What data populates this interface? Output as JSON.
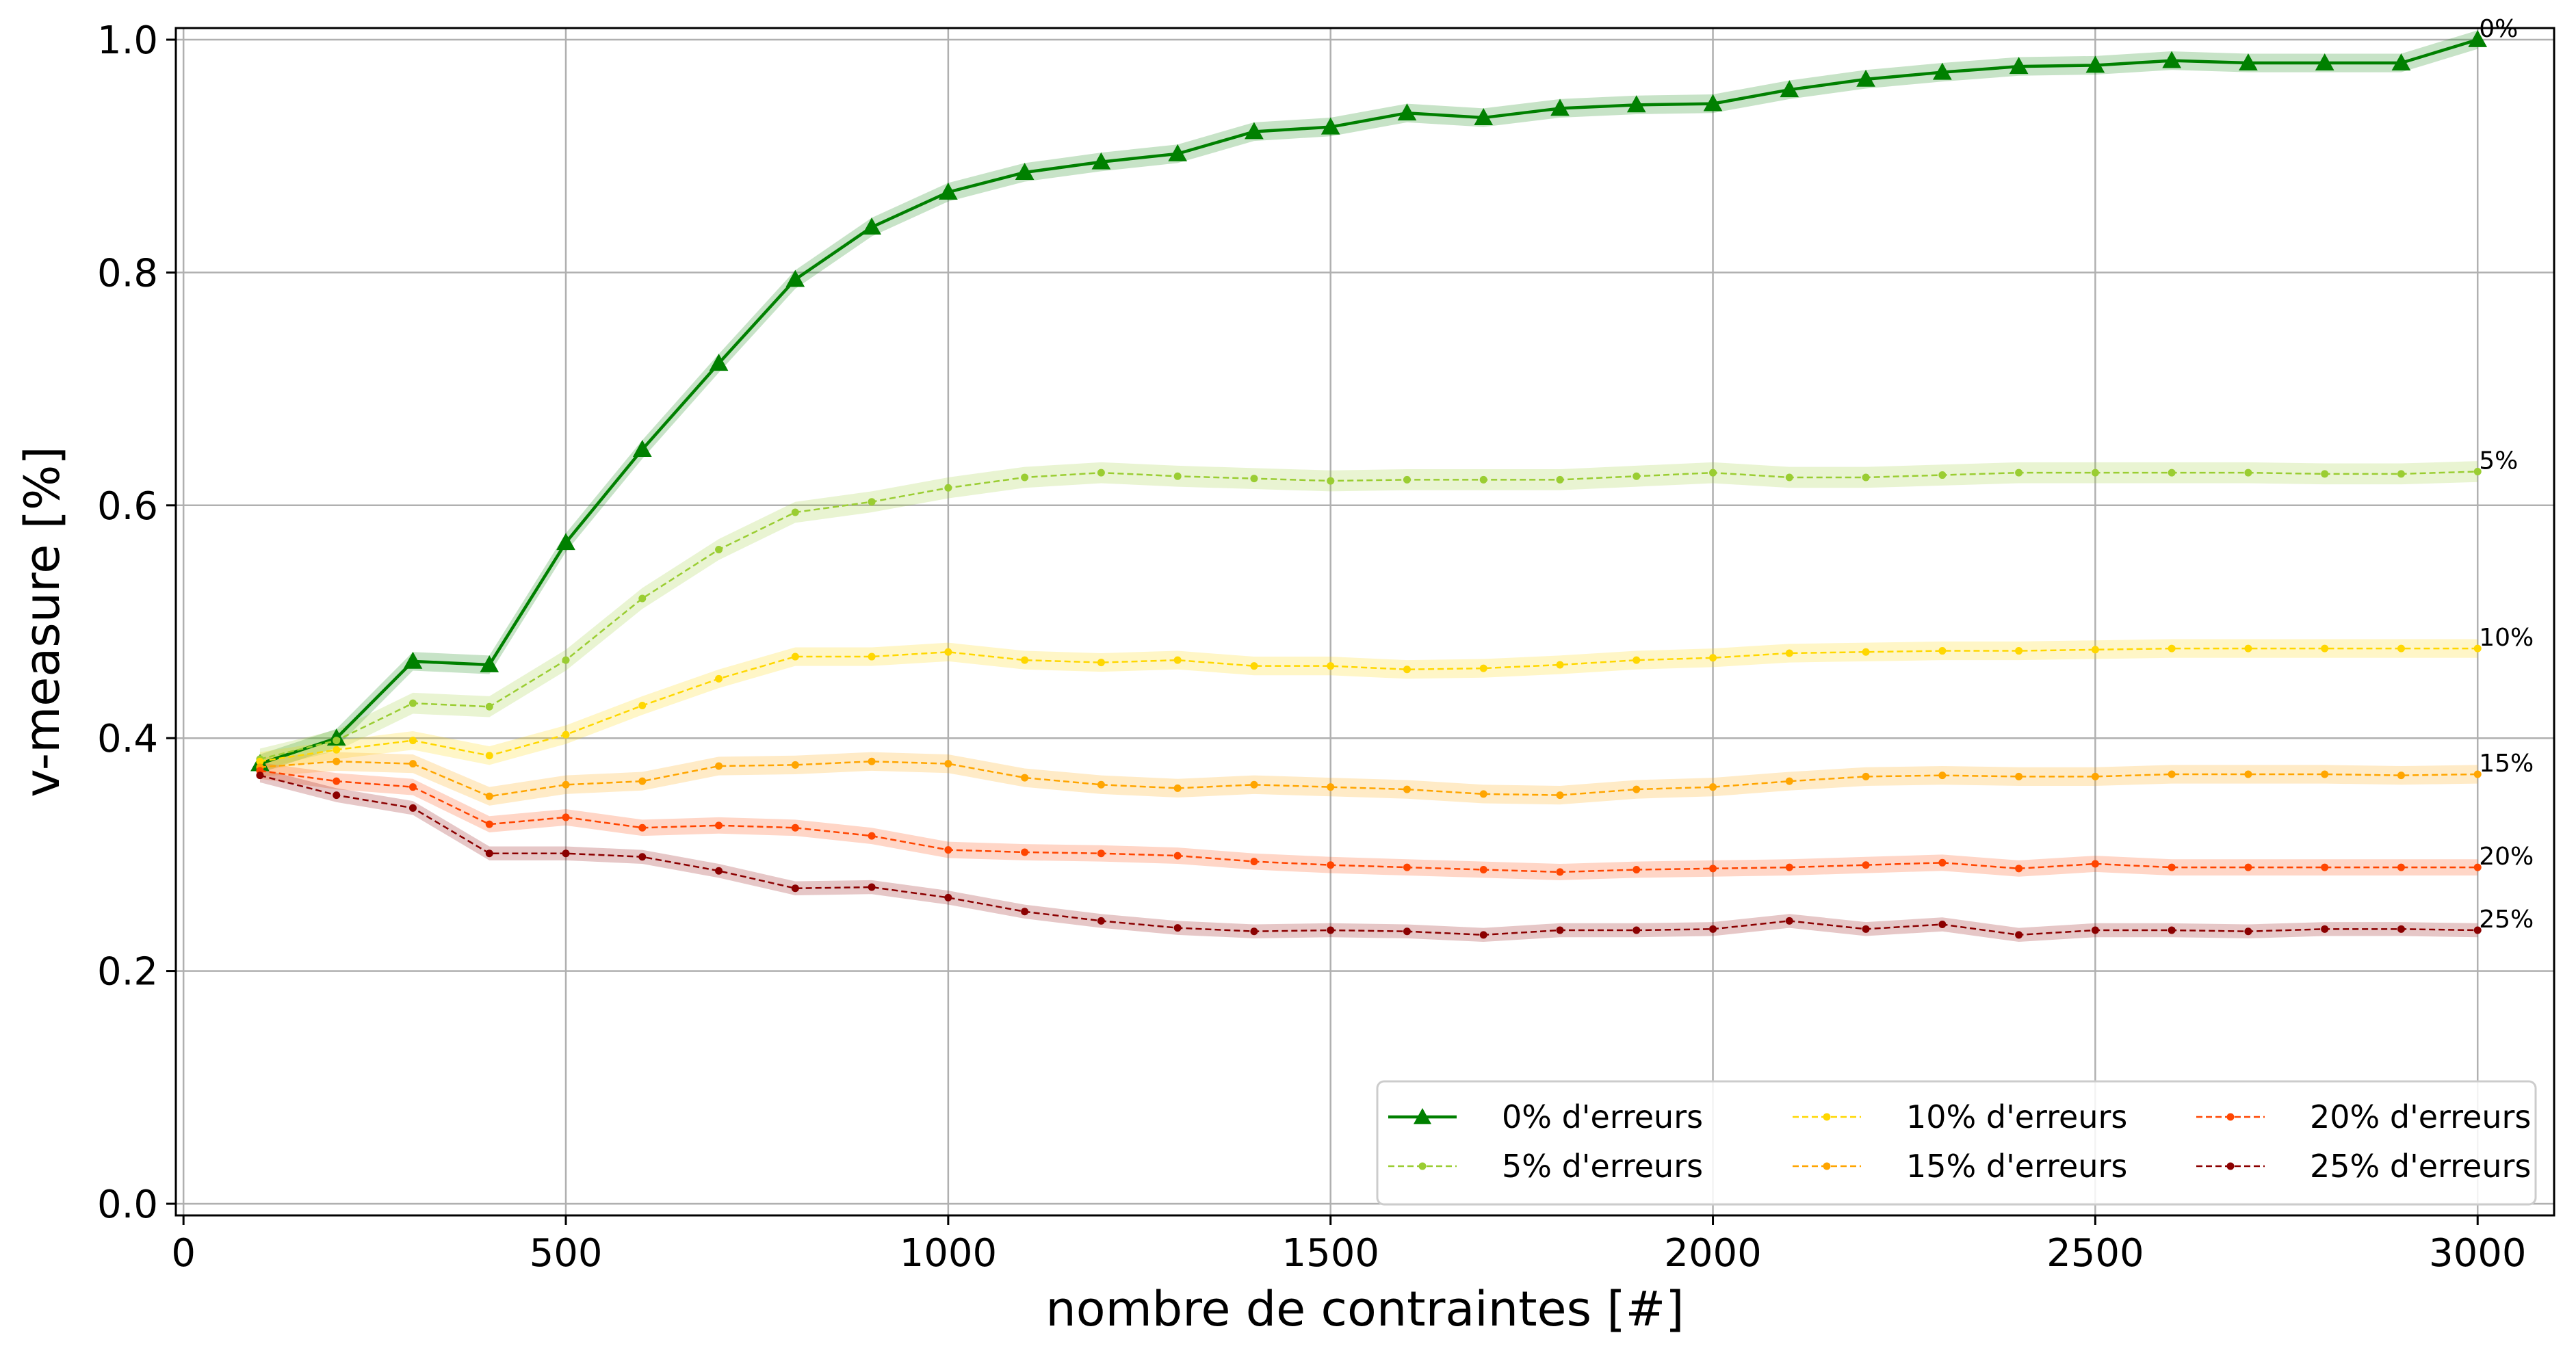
{
  "chart_data": {
    "type": "line",
    "xlabel": "nombre de contraintes [#]",
    "ylabel": "v-measure [%]",
    "xlim": [
      -10,
      3100
    ],
    "ylim": [
      -0.01,
      1.01
    ],
    "xticks": [
      0,
      500,
      1000,
      1500,
      2000,
      2500,
      3000
    ],
    "yticks": [
      0.0,
      0.2,
      0.4,
      0.6,
      0.8,
      1.0
    ],
    "xtick_labels": [
      "0",
      "500",
      "1000",
      "1500",
      "2000",
      "2500",
      "3000"
    ],
    "ytick_labels": [
      "0.0",
      "0.2",
      "0.4",
      "0.6",
      "0.8",
      "1.0"
    ],
    "grid": true,
    "legend_position": "bottom-right",
    "legend_columns": 3,
    "x": [
      100,
      200,
      300,
      400,
      500,
      600,
      700,
      800,
      900,
      1000,
      1100,
      1200,
      1300,
      1400,
      1500,
      1600,
      1700,
      1800,
      1900,
      2000,
      2100,
      2200,
      2300,
      2400,
      2500,
      2600,
      2700,
      2800,
      2900,
      3000
    ],
    "series": [
      {
        "name": "0% d'erreurs",
        "end_label": "0%",
        "color": "#008000",
        "marker": "triangle",
        "dashed": false,
        "values": [
          0.378,
          0.4,
          0.466,
          0.463,
          0.568,
          0.648,
          0.722,
          0.794,
          0.839,
          0.869,
          0.886,
          0.895,
          0.902,
          0.921,
          0.925,
          0.937,
          0.933,
          0.941,
          0.944,
          0.945,
          0.957,
          0.966,
          0.972,
          0.977,
          0.978,
          0.982,
          0.98,
          0.98,
          0.98,
          1.0
        ],
        "band": 0.008
      },
      {
        "name": "5% d'erreurs",
        "end_label": "5%",
        "color": "#9acd32",
        "marker": "dot",
        "dashed": true,
        "values": [
          0.382,
          0.398,
          0.43,
          0.427,
          0.467,
          0.52,
          0.562,
          0.594,
          0.603,
          0.615,
          0.624,
          0.628,
          0.625,
          0.623,
          0.621,
          0.622,
          0.622,
          0.622,
          0.625,
          0.628,
          0.624,
          0.624,
          0.626,
          0.628,
          0.628,
          0.628,
          0.628,
          0.627,
          0.627,
          0.629
        ],
        "band": 0.009
      },
      {
        "name": "10% d'erreurs",
        "end_label": "10%",
        "color": "#ffd700",
        "marker": "dot",
        "dashed": true,
        "values": [
          0.38,
          0.39,
          0.398,
          0.385,
          0.403,
          0.428,
          0.451,
          0.47,
          0.47,
          0.474,
          0.467,
          0.465,
          0.467,
          0.462,
          0.462,
          0.459,
          0.46,
          0.463,
          0.467,
          0.469,
          0.473,
          0.474,
          0.475,
          0.475,
          0.476,
          0.477,
          0.477,
          0.477,
          0.477,
          0.477
        ],
        "band": 0.008
      },
      {
        "name": "15% d'erreurs",
        "end_label": "15%",
        "color": "#ffa500",
        "marker": "dot",
        "dashed": true,
        "values": [
          0.375,
          0.38,
          0.378,
          0.35,
          0.36,
          0.363,
          0.376,
          0.377,
          0.38,
          0.378,
          0.366,
          0.36,
          0.357,
          0.36,
          0.358,
          0.356,
          0.352,
          0.351,
          0.356,
          0.358,
          0.363,
          0.367,
          0.368,
          0.367,
          0.367,
          0.369,
          0.369,
          0.369,
          0.368,
          0.369
        ],
        "band": 0.008
      },
      {
        "name": "20% d'erreurs",
        "end_label": "20%",
        "color": "#ff4500",
        "marker": "dot",
        "dashed": true,
        "values": [
          0.372,
          0.363,
          0.358,
          0.326,
          0.332,
          0.323,
          0.325,
          0.323,
          0.316,
          0.304,
          0.302,
          0.301,
          0.299,
          0.294,
          0.291,
          0.289,
          0.287,
          0.285,
          0.287,
          0.288,
          0.289,
          0.291,
          0.293,
          0.288,
          0.292,
          0.289,
          0.289,
          0.289,
          0.289,
          0.289
        ],
        "band": 0.007
      },
      {
        "name": "25% d'erreurs",
        "end_label": "25%",
        "color": "#8b0000",
        "marker": "dot",
        "dashed": true,
        "values": [
          0.368,
          0.351,
          0.34,
          0.301,
          0.301,
          0.298,
          0.286,
          0.271,
          0.272,
          0.263,
          0.251,
          0.243,
          0.237,
          0.234,
          0.235,
          0.234,
          0.231,
          0.235,
          0.235,
          0.236,
          0.243,
          0.236,
          0.24,
          0.231,
          0.235,
          0.235,
          0.234,
          0.236,
          0.236,
          0.235
        ],
        "band": 0.006
      }
    ]
  }
}
